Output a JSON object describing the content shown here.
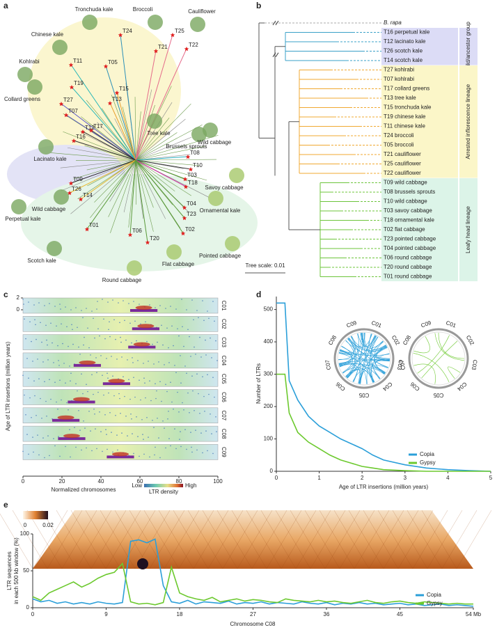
{
  "panel_labels": [
    "a",
    "b",
    "c",
    "d",
    "e"
  ],
  "tree_a": {
    "groups": [
      "Tronchuda kale",
      "Broccoli",
      "Cauliflower",
      "Chinese kale",
      "Kohlrabi",
      "Collard greens",
      "Lacinato kale",
      "Wild cabbage",
      "Perpetual kale",
      "Scotch kale",
      "Tree kale",
      "Brussels sprouts",
      "Wild cabbage",
      "Savoy cabbage",
      "Ornamental kale",
      "Pointed cabbage",
      "Flat cabbage",
      "Round cabbage"
    ],
    "samples": [
      "T24",
      "T25",
      "T21",
      "T22",
      "T05",
      "T11",
      "T19",
      "T15",
      "T13",
      "T27",
      "T07",
      "T17",
      "T12",
      "T16",
      "T09",
      "T26",
      "T14",
      "T08",
      "T10",
      "T03",
      "T18",
      "T04",
      "T23",
      "T02",
      "T01",
      "T06",
      "T20"
    ]
  },
  "tree_b": {
    "outgroup": "B. rapa",
    "scale": "Tree scale: 0.01",
    "clades": [
      {
        "name": "Wild/ancestor group",
        "leaves": [
          "T16 perpetual kale",
          "T12 lacinato kale",
          "T26 scotch kale",
          "T14 scotch kale"
        ]
      },
      {
        "name": "Arrested inflorescence lineage",
        "leaves": [
          "T27 kohlrabi",
          "T07 kohlrabi",
          "T17 collard greens",
          "T13 tree kale",
          "T15 tronchuda kale",
          "T19 chinese kale",
          "T11 chinese kale",
          "T24 broccoli",
          "T05 broccoli",
          "T21 cauliflower",
          "T25 cauliflower",
          "T22 cauliflower"
        ]
      },
      {
        "name": "Leafy head lineage",
        "leaves": [
          "T09 wild cabbage",
          "T08 brussels sprouts",
          "T10 wild cabbage",
          "T03 savoy cabbage",
          "T18 ornamental kale",
          "T02 flat cabbage",
          "T23 pointed cabbage",
          "T04 pointed cabbage",
          "T06 round cabbage",
          "T20 round cabbage",
          "T01 round cabbage"
        ]
      }
    ]
  },
  "heatmap_c": {
    "chromosomes": [
      "C01",
      "C02",
      "C03",
      "C04",
      "C05",
      "C06",
      "C07",
      "C08",
      "C09"
    ],
    "ylabel": "Age of LTR insertions (million years)",
    "ylim": [
      0,
      2
    ],
    "yticks": [
      2,
      0
    ],
    "xlabel": "Normalized chromosomes",
    "xlim": [
      0,
      100
    ],
    "xticks": [
      0,
      20,
      40,
      60,
      80,
      100
    ],
    "legend": {
      "low": "Low",
      "title": "LTR density",
      "high": "High"
    }
  },
  "chart_data": [
    {
      "type": "line",
      "xlabel": "Age of LTR insertions (million years)",
      "ylabel": "Number of LTRs",
      "x": [
        0,
        0.2,
        0.3,
        0.5,
        0.75,
        1,
        1.25,
        1.5,
        1.75,
        2,
        2.25,
        2.5,
        3,
        3.5,
        4,
        4.5,
        5
      ],
      "xlim": [
        0,
        5
      ],
      "xticks": [
        0,
        1,
        2,
        3,
        4,
        5
      ],
      "ylim": [
        0,
        540
      ],
      "yticks": [
        0,
        100,
        200,
        300,
        400,
        500
      ],
      "series": [
        {
          "name": "Copia",
          "color": "#2b9fd9",
          "values": [
            520,
            520,
            280,
            220,
            170,
            140,
            120,
            100,
            85,
            70,
            50,
            35,
            20,
            10,
            5,
            2,
            0
          ]
        },
        {
          "name": "Gypsy",
          "color": "#6cc92e",
          "values": [
            300,
            300,
            180,
            120,
            90,
            70,
            50,
            35,
            25,
            15,
            10,
            5,
            2,
            0,
            0,
            0,
            0
          ]
        }
      ],
      "circos": [
        "C01",
        "C02",
        "C03",
        "C04",
        "C05",
        "C06",
        "C07",
        "C08",
        "C09"
      ]
    },
    {
      "type": "line",
      "xlabel": "Chromosome C08",
      "ylabel": [
        "LTR sequences",
        "in each 500 kb window (%)"
      ],
      "x": [
        0,
        1,
        2,
        3,
        4,
        5,
        6,
        7,
        8,
        9,
        10,
        11,
        12,
        13,
        14,
        15,
        16,
        17,
        18,
        19,
        20,
        21,
        22,
        23,
        24,
        25,
        26,
        27,
        28,
        29,
        30,
        31,
        32,
        33,
        34,
        35,
        36,
        37,
        38,
        39,
        40,
        41,
        42,
        43,
        44,
        45,
        46,
        47,
        48,
        49,
        50,
        51,
        52,
        53,
        54
      ],
      "xlim": [
        0,
        54
      ],
      "xticks": [
        0,
        9,
        18,
        27,
        36,
        45,
        {
          "value": 54,
          "label": "54 Mb"
        }
      ],
      "ylim": [
        0,
        100
      ],
      "yticks": [
        0,
        50,
        100
      ],
      "series": [
        {
          "name": "Copia",
          "color": "#2b9fd9",
          "values": [
            12,
            8,
            10,
            6,
            8,
            5,
            7,
            5,
            8,
            6,
            5,
            7,
            90,
            92,
            88,
            93,
            30,
            8,
            6,
            10,
            5,
            8,
            7,
            6,
            9,
            5,
            7,
            6,
            8,
            5,
            7,
            6,
            5,
            8,
            6,
            5,
            7,
            4,
            6,
            5,
            7,
            5,
            6,
            4,
            5,
            6,
            4,
            5,
            3,
            4,
            5,
            3,
            4,
            3,
            2
          ]
        },
        {
          "name": "Gypsy",
          "color": "#6cc92e",
          "values": [
            15,
            10,
            20,
            25,
            30,
            35,
            28,
            33,
            40,
            45,
            48,
            60,
            8,
            5,
            6,
            4,
            7,
            55,
            20,
            15,
            12,
            10,
            14,
            8,
            10,
            12,
            9,
            11,
            10,
            8,
            7,
            12,
            10,
            9,
            8,
            10,
            8,
            9,
            7,
            6,
            8,
            10,
            7,
            6,
            8,
            9,
            7,
            6,
            8,
            7,
            6,
            5,
            6,
            5,
            5
          ]
        }
      ],
      "heatmap_ticks": [
        0,
        0.02
      ]
    }
  ]
}
